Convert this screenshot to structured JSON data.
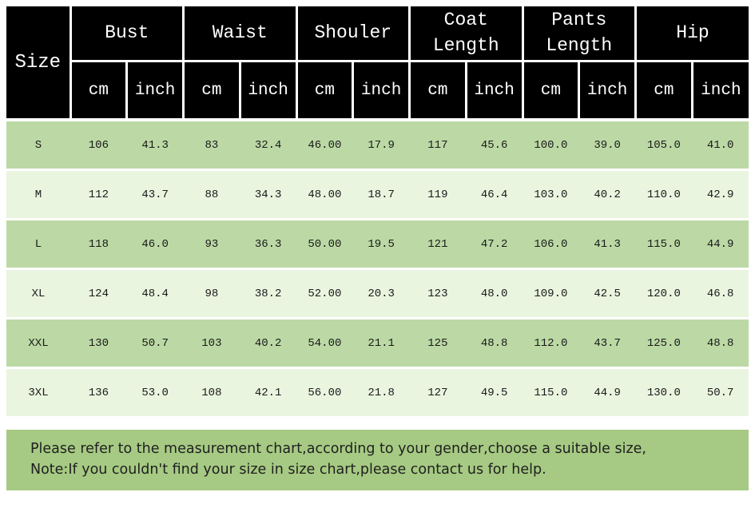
{
  "chart_data": {
    "type": "table",
    "size_label": "Size",
    "unit_headers": [
      "cm",
      "inch"
    ],
    "groups": [
      {
        "label": "Bust"
      },
      {
        "label": "Waist"
      },
      {
        "label": "Shouler"
      },
      {
        "label": "Coat Length"
      },
      {
        "label": "Pants Length"
      },
      {
        "label": "Hip"
      }
    ],
    "rows": [
      {
        "size": "S",
        "values": [
          "106",
          "41.3",
          "83",
          "32.4",
          "46.00",
          "17.9",
          "117",
          "45.6",
          "100.0",
          "39.0",
          "105.0",
          "41.0"
        ]
      },
      {
        "size": "M",
        "values": [
          "112",
          "43.7",
          "88",
          "34.3",
          "48.00",
          "18.7",
          "119",
          "46.4",
          "103.0",
          "40.2",
          "110.0",
          "42.9"
        ]
      },
      {
        "size": "L",
        "values": [
          "118",
          "46.0",
          "93",
          "36.3",
          "50.00",
          "19.5",
          "121",
          "47.2",
          "106.0",
          "41.3",
          "115.0",
          "44.9"
        ]
      },
      {
        "size": "XL",
        "values": [
          "124",
          "48.4",
          "98",
          "38.2",
          "52.00",
          "20.3",
          "123",
          "48.0",
          "109.0",
          "42.5",
          "120.0",
          "46.8"
        ]
      },
      {
        "size": "XXL",
        "values": [
          "130",
          "50.7",
          "103",
          "40.2",
          "54.00",
          "21.1",
          "125",
          "48.8",
          "112.0",
          "43.7",
          "125.0",
          "48.8"
        ]
      },
      {
        "size": "3XL",
        "values": [
          "136",
          "53.0",
          "108",
          "42.1",
          "56.00",
          "21.8",
          "127",
          "49.5",
          "115.0",
          "44.9",
          "130.0",
          "50.7"
        ]
      }
    ]
  },
  "footer": {
    "line1": "Please refer to the measurement chart,according to your gender,choose a suitable size,",
    "line2": "Note:If you couldn't find your size in size chart,please contact us for help."
  },
  "colors": {
    "header_bg": "#000000",
    "header_text": "#ffffff",
    "row_dark": "#bcd9a5",
    "row_light": "#eaf5e0",
    "footer_bg": "#a6ca83",
    "footer_text": "#1f1f1f"
  }
}
